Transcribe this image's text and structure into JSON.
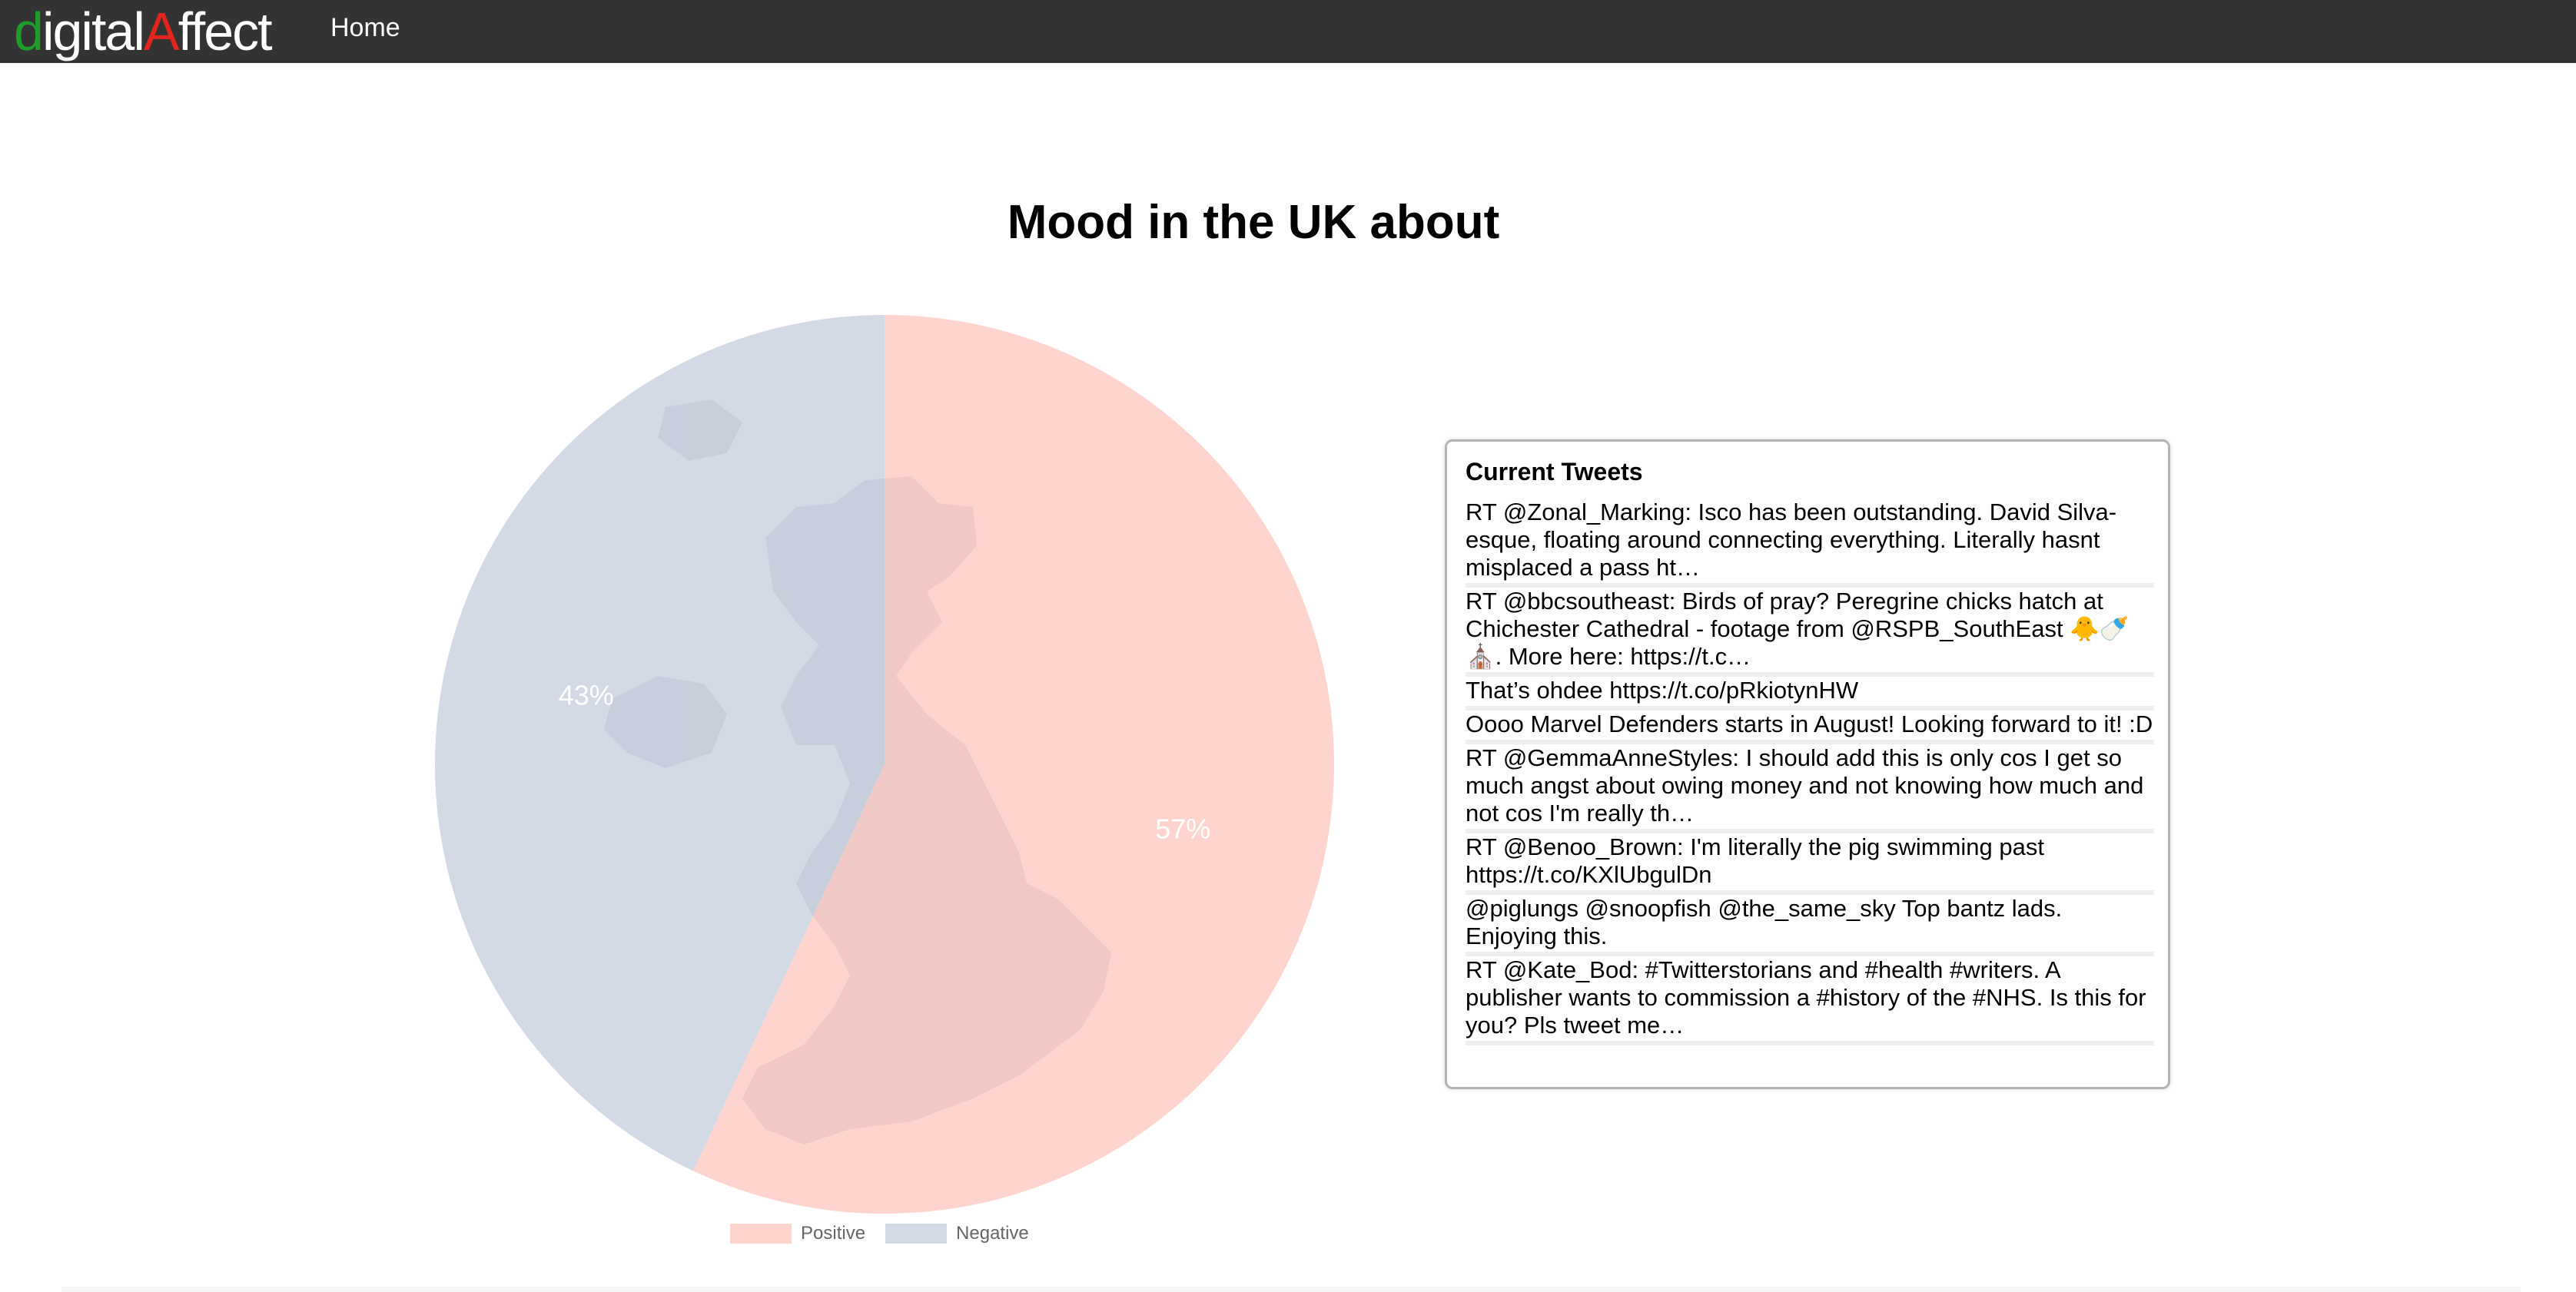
{
  "navbar": {
    "brand_letter_first": "d",
    "brand_part_1": "igital",
    "brand_letter_a": "A",
    "brand_part_2": "ffect",
    "home_label": "Home"
  },
  "page": {
    "title": "Mood in the UK about"
  },
  "chart_data": {
    "type": "pie",
    "title": "Mood in the UK about",
    "categories": [
      "Positive",
      "Negative"
    ],
    "values": [
      57,
      43
    ],
    "labels": [
      "57%",
      "43%"
    ],
    "colors": [
      "#ffd3ce",
      "#d4d9e6"
    ],
    "legend_position": "bottom-center"
  },
  "tweets": {
    "heading": "Current Tweets",
    "items": [
      "RT @Zonal_Marking: Isco has been outstanding. David Silva-esque, floating around connecting everything. Literally hasnt misplaced a pass ht…",
      "RT @bbcsoutheast: Birds of pray? Peregrine chicks hatch at Chichester Cathedral - footage from @RSPB_SouthEast 🐥🍼⛪. More here: https://t.c…",
      "That’s ohdee https://t.co/pRkiotynHW",
      "Oooo Marvel Defenders starts in August! Looking forward to it! :D",
      "RT @GemmaAnneStyles: I should add this is only cos I get so much angst about owing money and not knowing how much and not cos I'm really th…",
      "RT @Benoo_Brown: I'm literally the pig swimming past https://t.co/KXlUbgulDn",
      "@piglungs @snoopfish @the_same_sky Top bantz lads. Enjoying this.",
      "RT @Kate_Bod: #Twitterstorians and #health #writers. A publisher wants to commission a #history of the #NHS. Is this for you? Pls tweet me…"
    ]
  }
}
